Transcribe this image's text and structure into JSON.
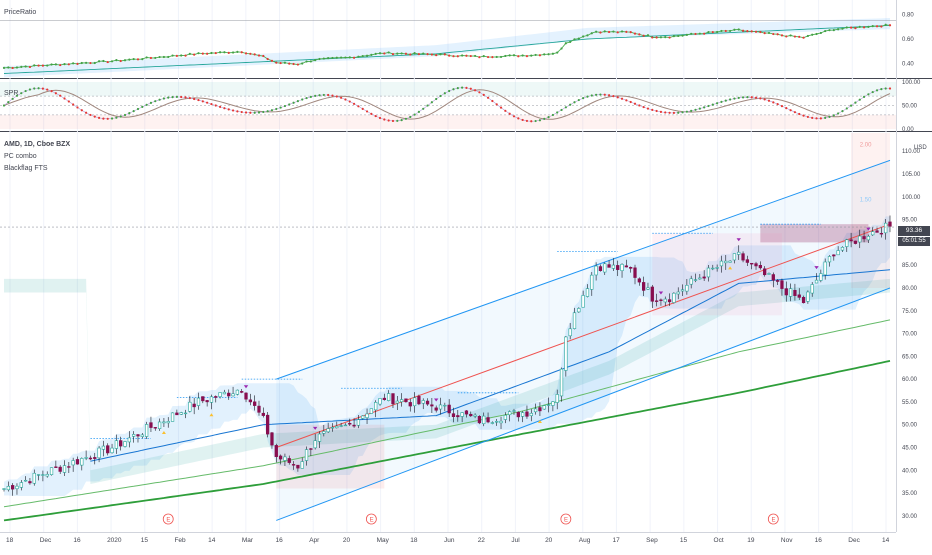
{
  "panes": {
    "ratio": {
      "title": "PriceRatio",
      "ticks": [
        "0.80",
        "0.60",
        "0.40"
      ]
    },
    "rsi": {
      "title": "SPR",
      "ticks": [
        "100.00",
        "50.00",
        "0.00"
      ]
    },
    "main": {
      "symbol": "AMD, 1D, Cboe BZX",
      "indicator_1": "PC combo",
      "indicator_2": "Blackflag FTS",
      "currency": "USD",
      "ticks": [
        "110.00",
        "105.00",
        "100.00",
        "95.00",
        "90.00",
        "85.00",
        "80.00",
        "75.00",
        "70.00",
        "65.00",
        "60.00",
        "55.00",
        "50.00",
        "45.00",
        "40.00",
        "35.00",
        "30.00"
      ],
      "last_price": "93.36",
      "countdown": "05:01:55",
      "level_labels": [
        "2.00",
        "1.50"
      ]
    }
  },
  "colors": {
    "up": "#26a69a",
    "down": "#880e4f",
    "channel": "#2196f3",
    "regression": "#ef5350",
    "ma_fast": "#1976d2",
    "ma_mid": "#66bb6a",
    "ma_slow": "#2e9e3a",
    "ratio_line": "#4caf50",
    "rsi_line": "#a1887f",
    "triangle": "#9c27b0",
    "earnings": "#ef5350"
  },
  "earnings_marker": "E",
  "x_axis": {
    "labels": [
      "18",
      "Dec",
      "16",
      "2020",
      "15",
      "Feb",
      "14",
      "Mar",
      "16",
      "Apr",
      "20",
      "May",
      "18",
      "Jun",
      "22",
      "Jul",
      "20",
      "Aug",
      "17",
      "Sep",
      "15",
      "Oct",
      "19",
      "Nov",
      "16",
      "Dec",
      "14"
    ]
  },
  "chart_data": {
    "type": "candlestick",
    "title": "AMD, 1D, Cboe BZX",
    "ylim": [
      28,
      114
    ],
    "last_price": 93.36,
    "close_anchors": [
      [
        0,
        36
      ],
      [
        25,
        45
      ],
      [
        45,
        55
      ],
      [
        55,
        58
      ],
      [
        60,
        51
      ],
      [
        63,
        43
      ],
      [
        68,
        41
      ],
      [
        72,
        47
      ],
      [
        80,
        50
      ],
      [
        88,
        56
      ],
      [
        100,
        54
      ],
      [
        110,
        51
      ],
      [
        122,
        53
      ],
      [
        128,
        56
      ],
      [
        130,
        70
      ],
      [
        137,
        85
      ],
      [
        145,
        84
      ],
      [
        150,
        78
      ],
      [
        154,
        78
      ],
      [
        162,
        83
      ],
      [
        170,
        87
      ],
      [
        180,
        80
      ],
      [
        185,
        77
      ],
      [
        192,
        88
      ],
      [
        200,
        92
      ],
      [
        205,
        93.5
      ]
    ],
    "weekly_labels_note": "",
    "ma_fast": [
      [
        20,
        42
      ],
      [
        60,
        50
      ],
      [
        100,
        52
      ],
      [
        140,
        66
      ],
      [
        170,
        81
      ],
      [
        205,
        84
      ]
    ],
    "ma_mid": [
      [
        0,
        32
      ],
      [
        60,
        41
      ],
      [
        120,
        53
      ],
      [
        170,
        66
      ],
      [
        205,
        73
      ]
    ],
    "ma_slow": [
      [
        0,
        29
      ],
      [
        60,
        37
      ],
      [
        120,
        48
      ],
      [
        170,
        57
      ],
      [
        205,
        64
      ]
    ],
    "channel_upper": [
      [
        63,
        60
      ],
      [
        205,
        108
      ]
    ],
    "channel_lower": [
      [
        63,
        29
      ],
      [
        205,
        80
      ]
    ],
    "regression": [
      [
        63,
        45
      ],
      [
        205,
        94
      ]
    ],
    "earnings_days": [
      38,
      85,
      130,
      178
    ],
    "rsi_ylim": [
      0,
      100
    ],
    "ratio_ylim": [
      0.3,
      0.9
    ]
  }
}
